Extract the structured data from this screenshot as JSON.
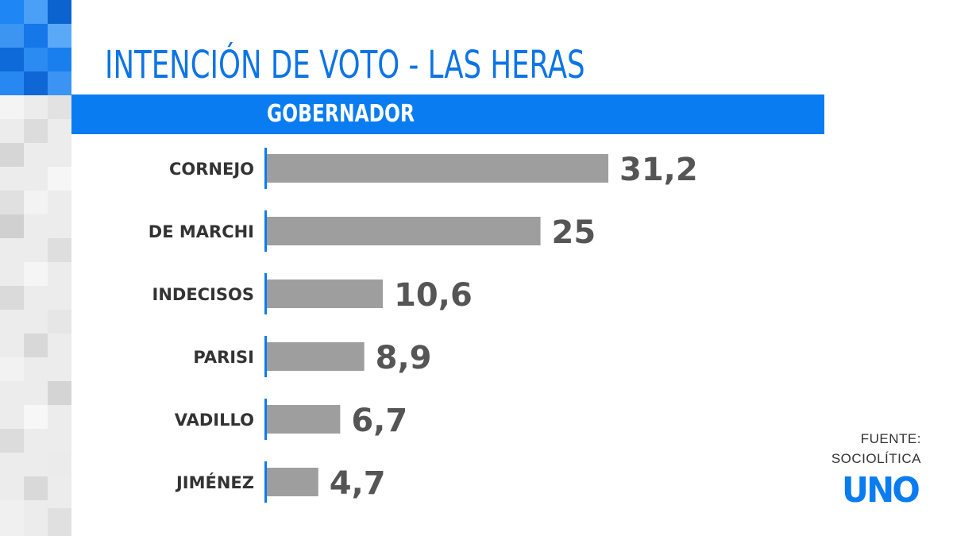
{
  "header": {
    "title": "INTENCIÓN DE VOTO - LAS HERAS",
    "banner": "GOBERNADOR"
  },
  "chart_data": {
    "type": "bar",
    "orientation": "horizontal",
    "categories": [
      "CORNEJO",
      "DE MARCHI",
      "INDECISOS",
      "PARISI",
      "VADILLO",
      "JIMÉNEZ"
    ],
    "values": [
      31.2,
      25,
      10.6,
      8.9,
      6.7,
      4.7
    ],
    "value_labels": [
      "31,2",
      "25",
      "10,6",
      "8,9",
      "6,7",
      "4,7"
    ],
    "title": "INTENCIÓN DE VOTO - LAS HERAS",
    "subtitle": "GOBERNADOR",
    "xlim": [
      0,
      31.2
    ],
    "grid": false,
    "colors": {
      "bar": "#9e9e9e",
      "axis": "#0a7cf1"
    }
  },
  "source": {
    "line1": "FUENTE:",
    "line2": "SOCIOLÍTICA"
  },
  "logo": {
    "text": "UNO"
  },
  "colors": {
    "brand": "#0a7cf1",
    "title": "#0d74e6"
  }
}
